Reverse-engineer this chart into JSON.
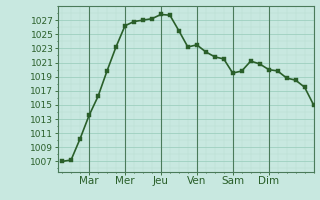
{
  "x_values": [
    0,
    1,
    2,
    3,
    4,
    5,
    6,
    7,
    8,
    9,
    10,
    11,
    12,
    13,
    14,
    15,
    16,
    17,
    18,
    19,
    20,
    21,
    22,
    23,
    24,
    25,
    26,
    27,
    28
  ],
  "y_values": [
    1007.0,
    1007.2,
    1010.2,
    1013.5,
    1016.2,
    1019.8,
    1023.2,
    1026.2,
    1026.8,
    1027.0,
    1027.2,
    1027.8,
    1027.7,
    1025.5,
    1023.2,
    1023.5,
    1022.5,
    1021.8,
    1021.5,
    1019.5,
    1019.8,
    1021.2,
    1020.8,
    1020.0,
    1019.8,
    1018.8,
    1018.5,
    1017.5,
    1015.0
  ],
  "xtick_positions": [
    3,
    7,
    11,
    15,
    19,
    23
  ],
  "xtick_labels": [
    "Mar",
    "Mer",
    "Jeu",
    "Ven",
    "Sam",
    "Dim"
  ],
  "ytick_values": [
    1007,
    1009,
    1011,
    1013,
    1015,
    1017,
    1019,
    1021,
    1023,
    1025,
    1027
  ],
  "ylim": [
    1005.5,
    1029.0
  ],
  "xlim": [
    -0.5,
    28
  ],
  "line_color": "#2a5f2a",
  "marker_color": "#2a5f2a",
  "bg_color": "#c8e8e0",
  "grid_major_color": "#9ecfbf",
  "grid_minor_color": "#b8ddd0",
  "axis_line_color": "#4a7a5a",
  "tick_label_color": "#2a5f2a",
  "line_width": 1.2,
  "marker_size": 2.5,
  "ytick_fontsize": 6.5,
  "xtick_fontsize": 7.5
}
